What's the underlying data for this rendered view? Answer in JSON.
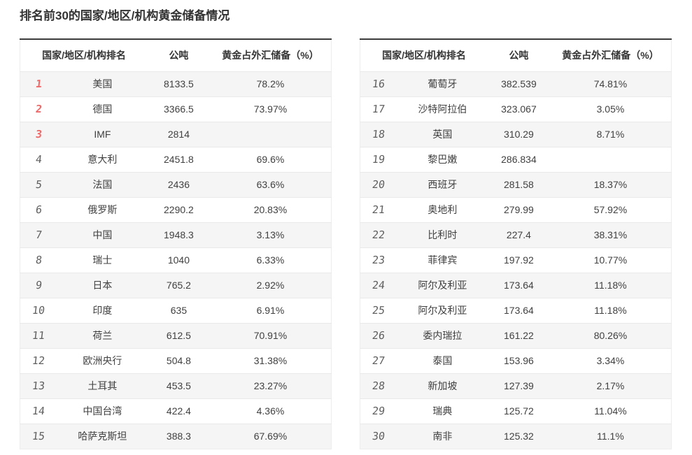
{
  "page": {
    "title": "排名前30的国家/地区/机构黄金储备情况"
  },
  "table_headers": {
    "rank_name": "国家/地区/机构排名",
    "tonnes": "公吨",
    "share": "黄金占外汇储备（%）"
  },
  "colors": {
    "rank_top3": "#ee6a6a",
    "rank_default": "#5f5f5f",
    "stripe_row": "#f5f5f5",
    "row_divider": "#e9e9e9",
    "table_top_border": "#3b3b3b",
    "text": "#404040",
    "heading_text": "#333333"
  },
  "chart_data": {
    "type": "table",
    "title": "排名前30的国家/地区/机构黄金储备情况",
    "columns": [
      "排名",
      "国家/地区/机构",
      "公吨",
      "黄金占外汇储备（%）"
    ],
    "layout": "two side-by-side tables, ranks 1-15 left, ranks 16-30 right, odd rows striped, top-3 ranks highlighted red",
    "rows": [
      [
        1,
        "美国",
        8133.5,
        "78.2%"
      ],
      [
        2,
        "德国",
        3366.5,
        "73.97%"
      ],
      [
        3,
        "IMF",
        2814,
        ""
      ],
      [
        4,
        "意大利",
        2451.8,
        "69.6%"
      ],
      [
        5,
        "法国",
        2436,
        "63.6%"
      ],
      [
        6,
        "俄罗斯",
        2290.2,
        "20.83%"
      ],
      [
        7,
        "中国",
        1948.3,
        "3.13%"
      ],
      [
        8,
        "瑞士",
        1040,
        "6.33%"
      ],
      [
        9,
        "日本",
        765.2,
        "2.92%"
      ],
      [
        10,
        "印度",
        635,
        "6.91%"
      ],
      [
        11,
        "荷兰",
        612.5,
        "70.91%"
      ],
      [
        12,
        "欧洲央行",
        504.8,
        "31.38%"
      ],
      [
        13,
        "土耳其",
        453.5,
        "23.27%"
      ],
      [
        14,
        "中国台湾",
        422.4,
        "4.36%"
      ],
      [
        15,
        "哈萨克斯坦",
        388.3,
        "67.69%"
      ],
      [
        16,
        "葡萄牙",
        382.539,
        "74.81%"
      ],
      [
        17,
        "沙特阿拉伯",
        323.067,
        "3.05%"
      ],
      [
        18,
        "英国",
        310.29,
        "8.71%"
      ],
      [
        19,
        "黎巴嫩",
        286.834,
        ""
      ],
      [
        20,
        "西班牙",
        281.58,
        "18.37%"
      ],
      [
        21,
        "奥地利",
        279.99,
        "57.92%"
      ],
      [
        22,
        "比利时",
        227.4,
        "38.31%"
      ],
      [
        23,
        "菲律宾",
        197.92,
        "10.77%"
      ],
      [
        24,
        "阿尔及利亚",
        173.64,
        "11.18%"
      ],
      [
        25,
        "阿尔及利亚",
        173.64,
        "11.18%"
      ],
      [
        26,
        "委内瑞拉",
        161.22,
        "80.26%"
      ],
      [
        27,
        "泰国",
        153.96,
        "3.34%"
      ],
      [
        28,
        "新加坡",
        127.39,
        "2.17%"
      ],
      [
        29,
        "瑞典",
        125.72,
        "11.04%"
      ],
      [
        30,
        "南非",
        125.32,
        "11.1%"
      ]
    ]
  }
}
